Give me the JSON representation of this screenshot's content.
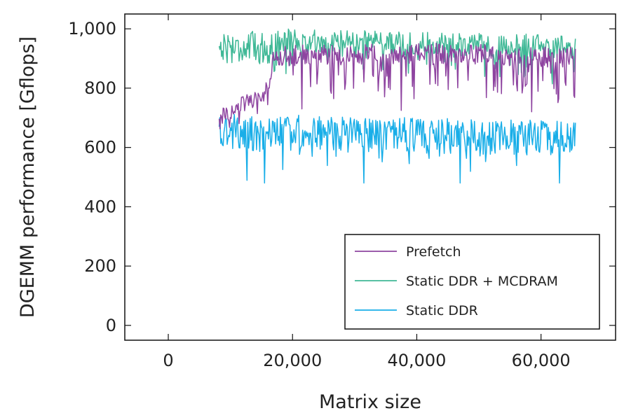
{
  "chart_data": {
    "type": "line",
    "xlabel": "Matrix size",
    "ylabel": "DGEMM performance [Gflops]",
    "xlim": [
      -7000,
      72000
    ],
    "ylim": [
      -50,
      1050
    ],
    "xticks": [
      0,
      20000,
      40000,
      60000
    ],
    "xtick_labels": [
      "0",
      "20,000",
      "40,000",
      "60,000"
    ],
    "yticks": [
      0,
      200,
      400,
      600,
      800,
      1000
    ],
    "ytick_labels": [
      "0",
      "200",
      "400",
      "600",
      "800",
      "1,000"
    ],
    "grid": false,
    "legend_position": "bottom-right",
    "x_range": [
      8192,
      65536
    ],
    "x_step": 128,
    "series": [
      {
        "name": "Prefetch",
        "color": "#8e44a0",
        "summary": "Rises roughly linearly from about 700 to 800 Gflops between matrix size 8,192 and 16,384, then fluctuates mostly between about 840 and 970 Gflops with dips to roughly 720 Gflops up to matrix size 65,536.",
        "anchors": [
          [
            8192,
            700
          ],
          [
            12000,
            745
          ],
          [
            16384,
            800
          ],
          [
            17000,
            905
          ],
          [
            40000,
            915
          ],
          [
            65536,
            900
          ]
        ],
        "dips": [
          [
            21500,
            730
          ],
          [
            37500,
            725
          ],
          [
            58500,
            720
          ],
          [
            62500,
            780
          ],
          [
            65300,
            775
          ]
        ]
      },
      {
        "name": "Static DDR + MCDRAM",
        "color": "#3fb896",
        "summary": "Oscillates between about 880 and 1,000 Gflops from matrix size 8,192 to 16,384, then stays mostly between about 850 and 990 Gflops up to 65,536.",
        "anchors": [
          [
            8192,
            940
          ],
          [
            16384,
            935
          ],
          [
            17000,
            960
          ],
          [
            40000,
            945
          ],
          [
            65536,
            935
          ]
        ],
        "dips": [
          [
            21500,
            850
          ],
          [
            37500,
            830
          ],
          [
            58500,
            830
          ],
          [
            65300,
            855
          ]
        ]
      },
      {
        "name": "Static DDR",
        "color": "#19aee8",
        "summary": "Fluctuates between about 580 and 730 Gflops across the full range from matrix size 8,192 to 65,536, with occasional dips to roughly 480 Gflops.",
        "anchors": [
          [
            8192,
            660
          ],
          [
            16384,
            640
          ],
          [
            17000,
            655
          ],
          [
            40000,
            640
          ],
          [
            65536,
            630
          ]
        ],
        "dips": [
          [
            15500,
            480
          ],
          [
            31500,
            480
          ],
          [
            47000,
            480
          ],
          [
            63000,
            480
          ]
        ]
      }
    ]
  }
}
